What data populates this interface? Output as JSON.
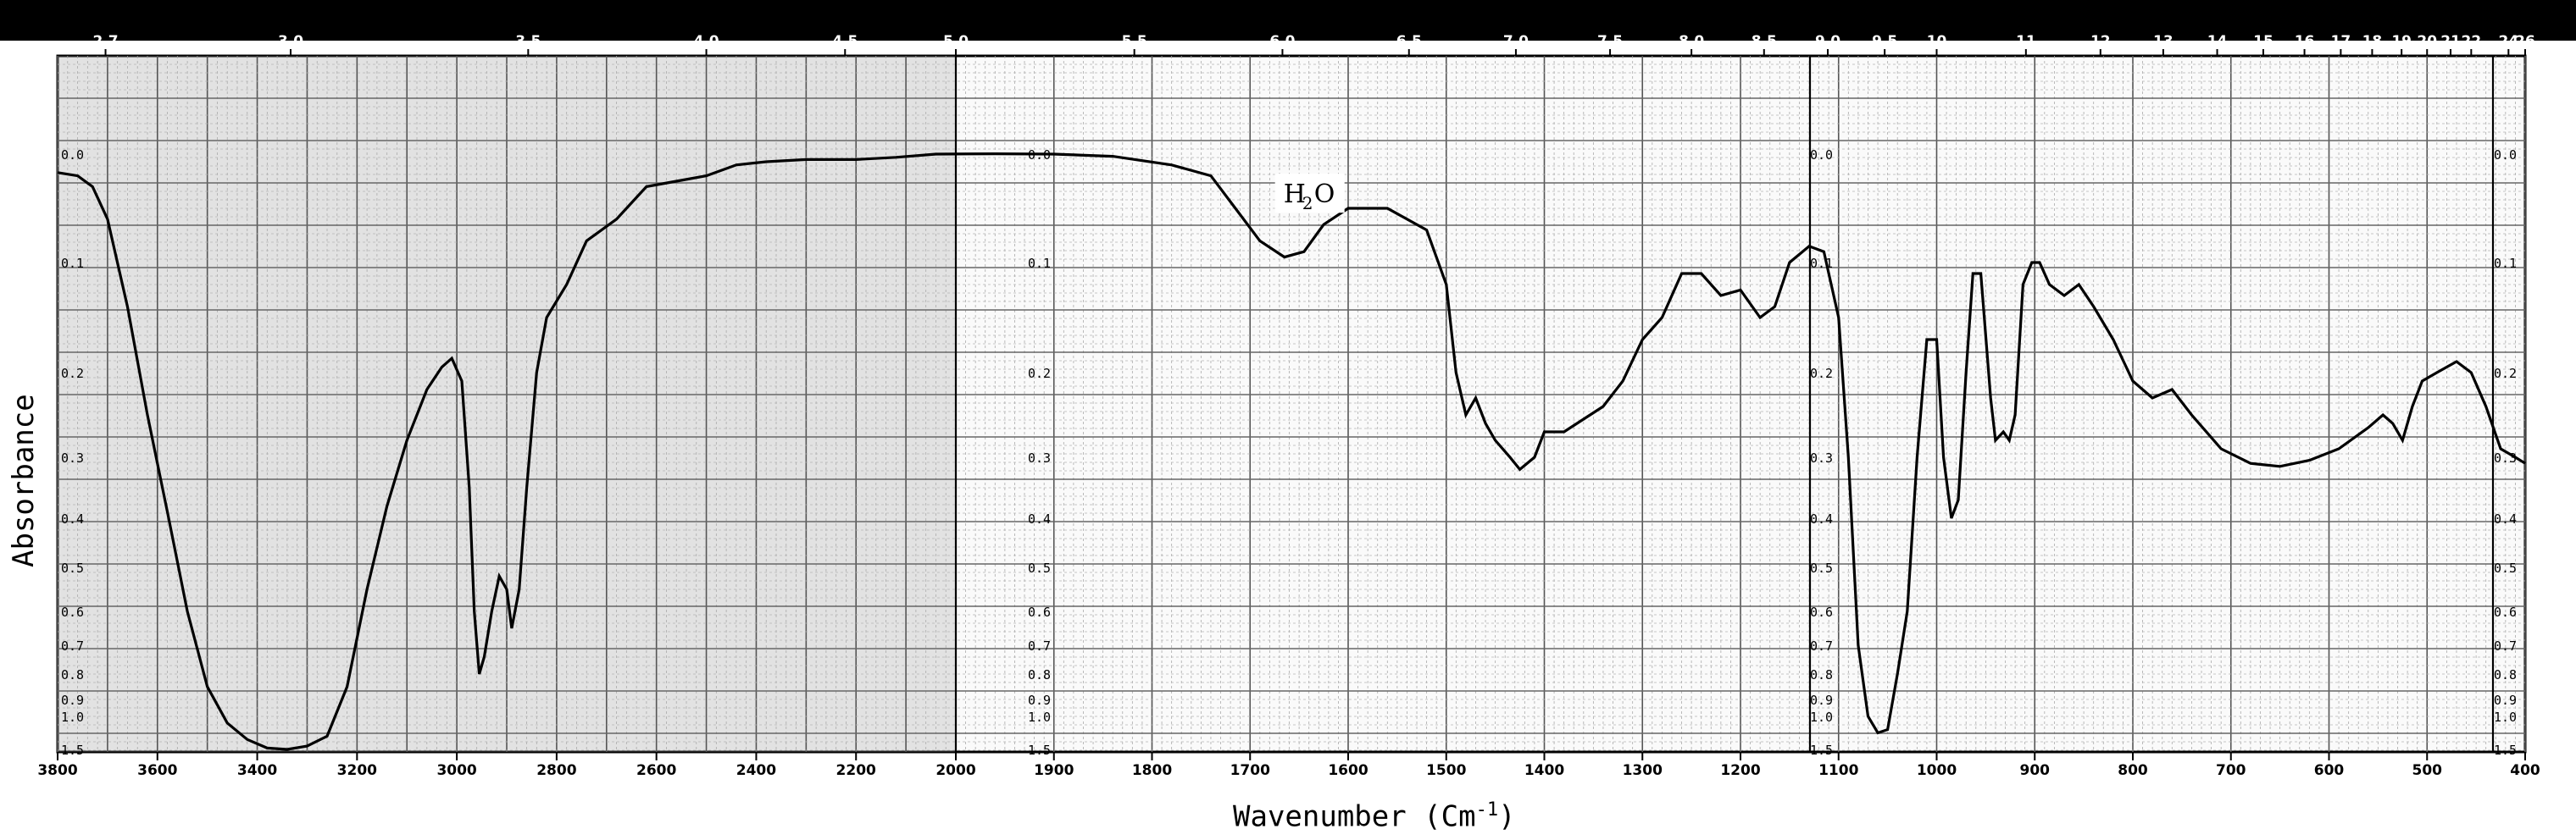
{
  "chart_data": {
    "type": "line",
    "title": "",
    "xlabel": "Wavenumber (Cm",
    "xlabel_sup": "-1",
    "xlabel_close": ")",
    "ylabel": "Absorbance",
    "annotation": {
      "text": "H",
      "sub": "2",
      "tail": "O",
      "x": 1640,
      "y": 0.04
    },
    "wavenumber_ticks": [
      "3800",
      "3600",
      "3400",
      "3200",
      "3000",
      "2800",
      "2600",
      "2400",
      "2200",
      "2000",
      "1900",
      "1800",
      "1700",
      "1600",
      "1500",
      "1400",
      "1300",
      "1200",
      "1100",
      "1000",
      "900",
      "800",
      "700",
      "600",
      "500",
      "400"
    ],
    "micron_ticks": [
      {
        "label": "2.7",
        "cm": 3704
      },
      {
        "label": "3.0",
        "cm": 3333
      },
      {
        "label": "3.5",
        "cm": 2857
      },
      {
        "label": "4.0",
        "cm": 2500
      },
      {
        "label": "4.5",
        "cm": 2222
      },
      {
        "label": "5.0",
        "cm": 2000
      },
      {
        "label": "5.5",
        "cm": 1818
      },
      {
        "label": "6.0",
        "cm": 1667
      },
      {
        "label": "6.5",
        "cm": 1538
      },
      {
        "label": "7.0",
        "cm": 1429
      },
      {
        "label": "7.5",
        "cm": 1333
      },
      {
        "label": "8.0",
        "cm": 1250
      },
      {
        "label": "8.5",
        "cm": 1176
      },
      {
        "label": "9.0",
        "cm": 1111
      },
      {
        "label": "9.5",
        "cm": 1053
      },
      {
        "label": "10",
        "cm": 1000
      },
      {
        "label": "11",
        "cm": 909
      },
      {
        "label": "12",
        "cm": 833
      },
      {
        "label": "13",
        "cm": 769
      },
      {
        "label": "14",
        "cm": 714
      },
      {
        "label": "15",
        "cm": 667
      },
      {
        "label": "16",
        "cm": 625
      },
      {
        "label": "17",
        "cm": 588
      },
      {
        "label": "18",
        "cm": 556
      },
      {
        "label": "19",
        "cm": 526
      },
      {
        "label": "20",
        "cm": 500
      },
      {
        "label": "21",
        "cm": 476
      },
      {
        "label": "22",
        "cm": 455
      },
      {
        "label": "24",
        "cm": 417
      },
      {
        "label": "26",
        "cm": 385
      }
    ],
    "absorbance_ticks": [
      "0.0",
      "0.1",
      "0.2",
      "0.3",
      "0.4",
      "0.5",
      "0.6",
      "0.7",
      "0.8",
      "0.9",
      "1.0",
      "1.5"
    ],
    "grid": true,
    "series": [
      {
        "points": [
          [
            3800,
            0.017
          ],
          [
            3760,
            0.02
          ],
          [
            3730,
            0.03
          ],
          [
            3700,
            0.06
          ],
          [
            3660,
            0.14
          ],
          [
            3620,
            0.25
          ],
          [
            3580,
            0.39
          ],
          [
            3540,
            0.6
          ],
          [
            3500,
            0.85
          ],
          [
            3460,
            1.1
          ],
          [
            3420,
            1.35
          ],
          [
            3380,
            1.48
          ],
          [
            3340,
            1.5
          ],
          [
            3300,
            1.45
          ],
          [
            3260,
            1.3
          ],
          [
            3220,
            0.85
          ],
          [
            3180,
            0.55
          ],
          [
            3140,
            0.38
          ],
          [
            3100,
            0.28
          ],
          [
            3060,
            0.22
          ],
          [
            3030,
            0.195
          ],
          [
            3010,
            0.187
          ],
          [
            2990,
            0.21
          ],
          [
            2975,
            0.35
          ],
          [
            2965,
            0.6
          ],
          [
            2955,
            0.8
          ],
          [
            2945,
            0.74
          ],
          [
            2930,
            0.6
          ],
          [
            2915,
            0.52
          ],
          [
            2900,
            0.55
          ],
          [
            2890,
            0.65
          ],
          [
            2875,
            0.55
          ],
          [
            2860,
            0.35
          ],
          [
            2840,
            0.2
          ],
          [
            2820,
            0.15
          ],
          [
            2780,
            0.12
          ],
          [
            2740,
            0.08
          ],
          [
            2680,
            0.06
          ],
          [
            2620,
            0.03
          ],
          [
            2560,
            0.025
          ],
          [
            2500,
            0.02
          ],
          [
            2440,
            0.01
          ],
          [
            2380,
            0.007
          ],
          [
            2300,
            0.005
          ],
          [
            2200,
            0.005
          ],
          [
            2120,
            0.003
          ],
          [
            2040,
            0.0
          ],
          [
            1960,
            -0.002
          ],
          [
            1900,
            0.0
          ],
          [
            1840,
            0.002
          ],
          [
            1780,
            0.01
          ],
          [
            1740,
            0.02
          ],
          [
            1715,
            0.05
          ],
          [
            1690,
            0.08
          ],
          [
            1665,
            0.095
          ],
          [
            1645,
            0.09
          ],
          [
            1625,
            0.065
          ],
          [
            1600,
            0.05
          ],
          [
            1560,
            0.05
          ],
          [
            1520,
            0.07
          ],
          [
            1500,
            0.12
          ],
          [
            1490,
            0.2
          ],
          [
            1480,
            0.25
          ],
          [
            1470,
            0.23
          ],
          [
            1460,
            0.26
          ],
          [
            1450,
            0.28
          ],
          [
            1435,
            0.3
          ],
          [
            1425,
            0.32
          ],
          [
            1410,
            0.3
          ],
          [
            1400,
            0.27
          ],
          [
            1380,
            0.27
          ],
          [
            1360,
            0.255
          ],
          [
            1340,
            0.24
          ],
          [
            1320,
            0.21
          ],
          [
            1300,
            0.17
          ],
          [
            1280,
            0.15
          ],
          [
            1260,
            0.11
          ],
          [
            1240,
            0.11
          ],
          [
            1220,
            0.13
          ],
          [
            1200,
            0.125
          ],
          [
            1180,
            0.15
          ],
          [
            1165,
            0.14
          ],
          [
            1150,
            0.1
          ],
          [
            1130,
            0.085
          ],
          [
            1115,
            0.09
          ],
          [
            1100,
            0.15
          ],
          [
            1090,
            0.3
          ],
          [
            1080,
            0.7
          ],
          [
            1070,
            1.0
          ],
          [
            1060,
            1.25
          ],
          [
            1050,
            1.2
          ],
          [
            1040,
            0.8
          ],
          [
            1030,
            0.6
          ],
          [
            1020,
            0.3
          ],
          [
            1010,
            0.17
          ],
          [
            1000,
            0.17
          ],
          [
            993,
            0.3
          ],
          [
            985,
            0.4
          ],
          [
            978,
            0.37
          ],
          [
            970,
            0.2
          ],
          [
            963,
            0.11
          ],
          [
            955,
            0.11
          ],
          [
            945,
            0.23
          ],
          [
            940,
            0.28
          ],
          [
            932,
            0.27
          ],
          [
            926,
            0.28
          ],
          [
            920,
            0.25
          ],
          [
            912,
            0.12
          ],
          [
            903,
            0.1
          ],
          [
            895,
            0.1
          ],
          [
            885,
            0.12
          ],
          [
            870,
            0.13
          ],
          [
            855,
            0.12
          ],
          [
            840,
            0.14
          ],
          [
            820,
            0.17
          ],
          [
            800,
            0.21
          ],
          [
            780,
            0.23
          ],
          [
            760,
            0.22
          ],
          [
            740,
            0.25
          ],
          [
            710,
            0.29
          ],
          [
            680,
            0.31
          ],
          [
            650,
            0.315
          ],
          [
            620,
            0.305
          ],
          [
            590,
            0.29
          ],
          [
            560,
            0.265
          ],
          [
            545,
            0.25
          ],
          [
            535,
            0.26
          ],
          [
            525,
            0.28
          ],
          [
            515,
            0.24
          ],
          [
            505,
            0.21
          ],
          [
            490,
            0.2
          ],
          [
            470,
            0.19
          ],
          [
            455,
            0.2
          ],
          [
            440,
            0.24
          ],
          [
            425,
            0.29
          ],
          [
            410,
            0.3
          ],
          [
            400,
            0.31
          ]
        ]
      }
    ]
  }
}
